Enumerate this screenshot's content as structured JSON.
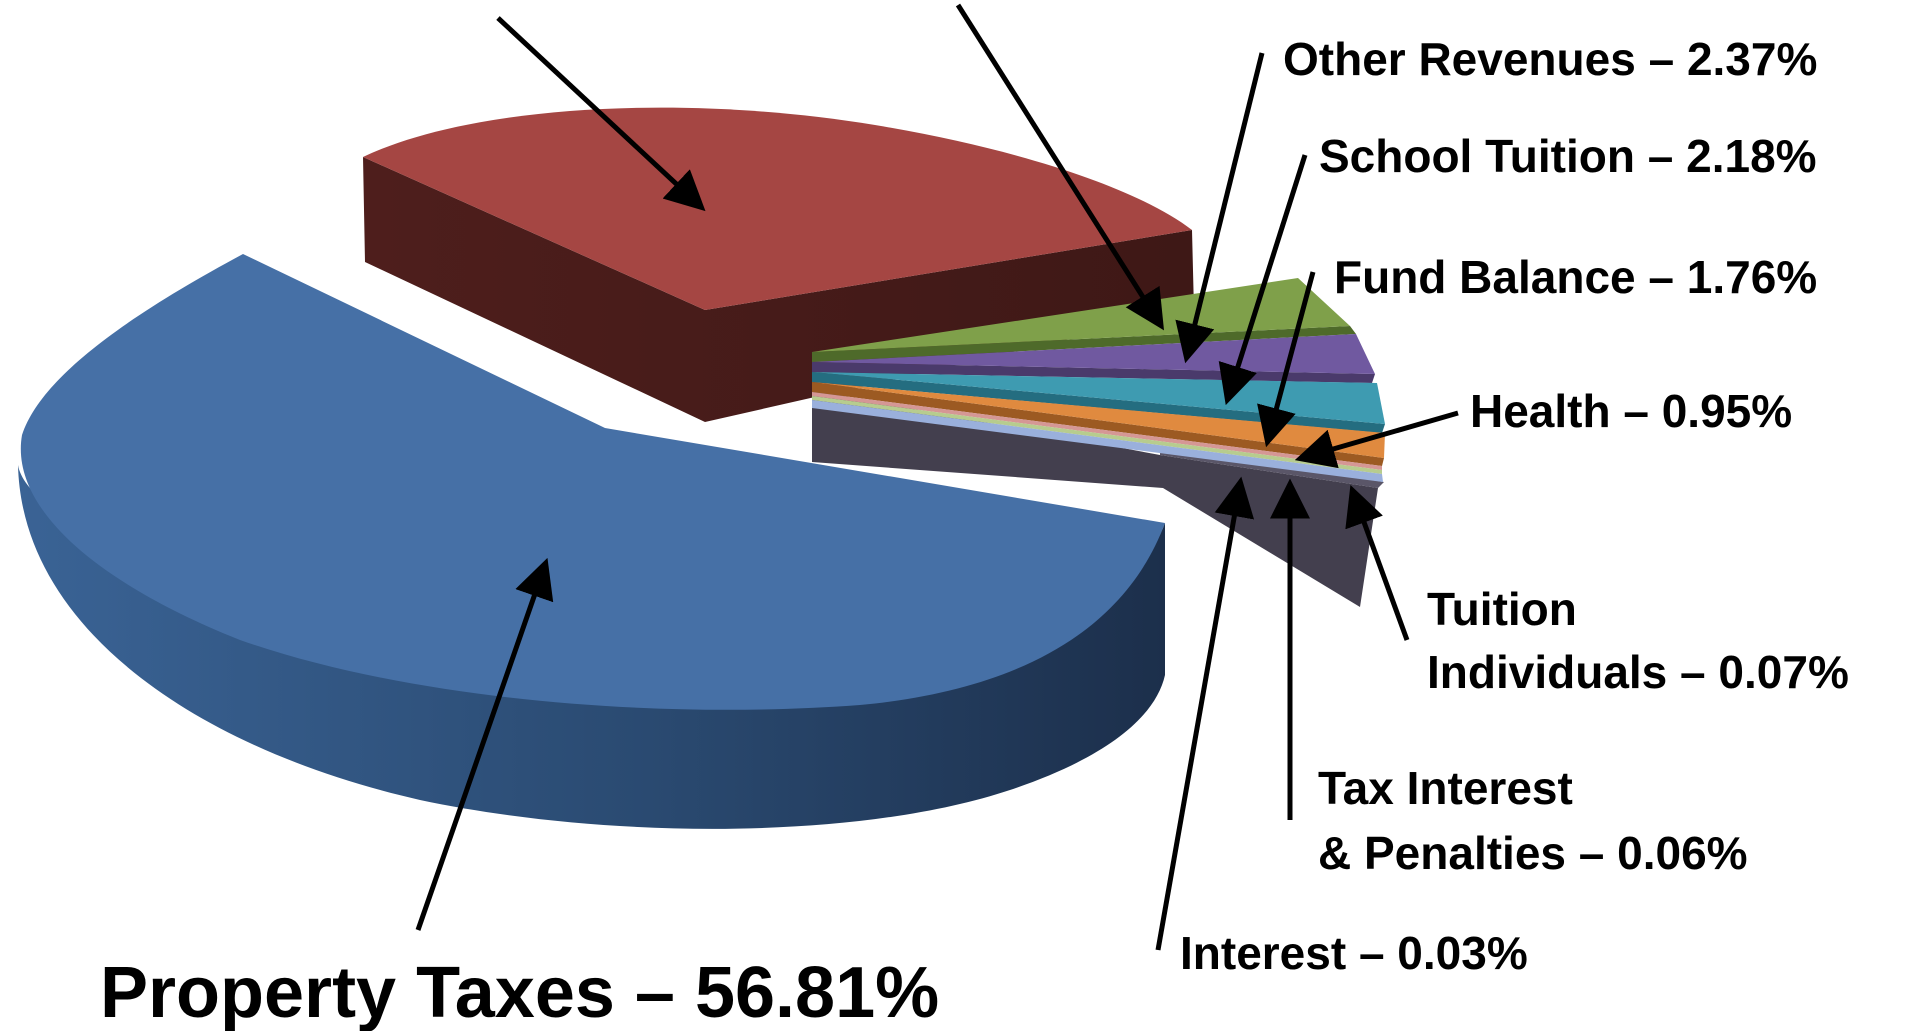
{
  "chart_data": {
    "type": "pie",
    "title": "",
    "slices": [
      {
        "label": "Property Taxes",
        "value": 56.81,
        "value_text": "56.81%",
        "color": "#4670A6"
      },
      {
        "label": "",
        "value": 35.77,
        "value_text": "",
        "color": "#A54643"
      },
      {
        "label": "Other Revenues",
        "value": 2.37,
        "value_text": "2.37%",
        "color": "#7FA04A"
      },
      {
        "label": "School Tuition",
        "value": 2.18,
        "value_text": "2.18%",
        "color": "#7059A0"
      },
      {
        "label": "Fund Balance",
        "value": 1.76,
        "value_text": "1.76%",
        "color": "#3E9BB1"
      },
      {
        "label": "Health",
        "value": 0.95,
        "value_text": "0.95%",
        "color": "#E08A3F"
      },
      {
        "label": "Tuition Individuals",
        "value": 0.07,
        "value_text": "0.07%",
        "color": "#9AB0DC"
      },
      {
        "label": "Tax Interest & Penalties",
        "value": 0.06,
        "value_text": "0.06%",
        "color": "#D59795"
      },
      {
        "label": "Interest",
        "value": 0.03,
        "value_text": "0.03%",
        "color": "#B7CC8E"
      }
    ]
  },
  "labels": {
    "other_revenues": "Other Revenues – 2.37%",
    "school_tuition": "School Tuition – 2.18%",
    "fund_balance": "Fund Balance – 1.76%",
    "health": "Health – 0.95%",
    "tuition_line1": "Tuition",
    "tuition_line2": "Individuals – 0.07%",
    "tax_interest_line1": "Tax Interest",
    "tax_interest_line2": "& Penalties – 0.06%",
    "interest": "Interest – 0.03%",
    "property_taxes": "Property Taxes – 56.81%"
  }
}
